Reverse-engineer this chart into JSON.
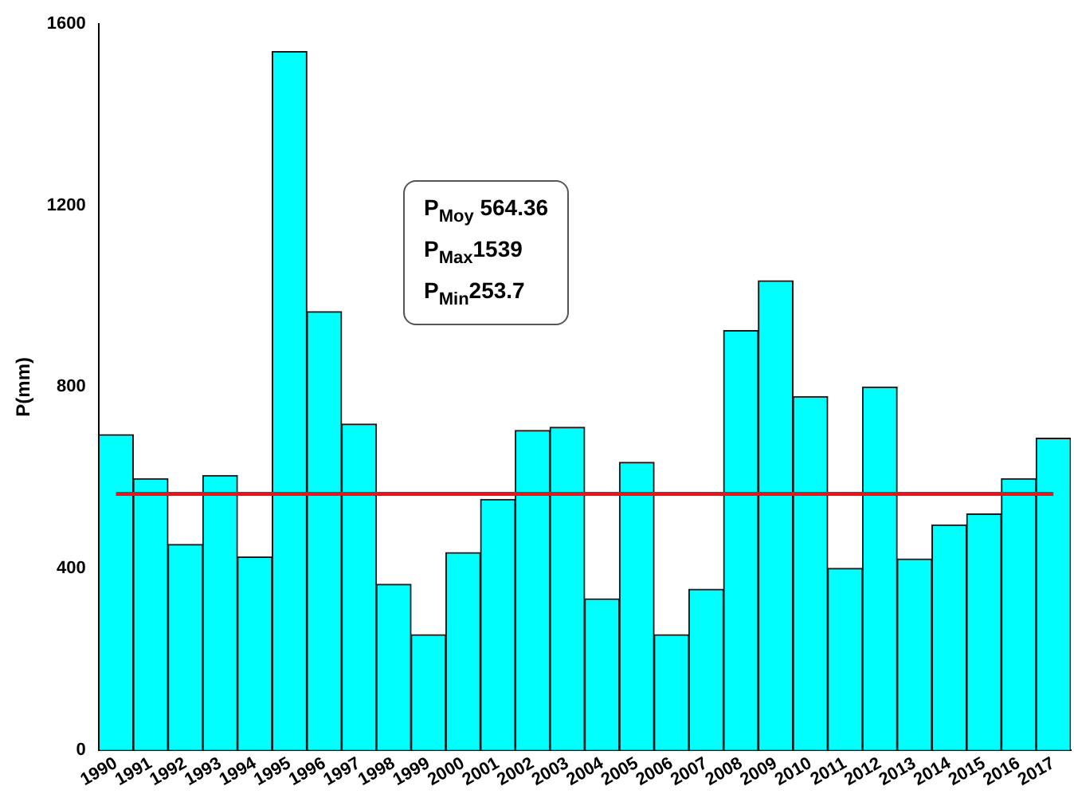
{
  "chart_data": {
    "type": "bar",
    "ylabel": "P(mm)",
    "categories": [
      "1990",
      "1991",
      "1992",
      "1993",
      "1994",
      "1995",
      "1996",
      "1997",
      "1998",
      "1999",
      "2000",
      "2001",
      "2002",
      "2003",
      "2004",
      "2005",
      "2006",
      "2007",
      "2008",
      "2009",
      "2010",
      "2011",
      "2012",
      "2013",
      "2014",
      "2015",
      "2016",
      "2017"
    ],
    "values": [
      695,
      598,
      453,
      605,
      425,
      1539,
      966,
      718,
      365,
      254,
      435,
      552,
      704,
      711,
      333,
      634,
      254,
      354,
      924,
      1034,
      779,
      400,
      800,
      421,
      496,
      520,
      598,
      687
    ],
    "color": "#00ffff",
    "ylim": [
      0,
      1600
    ],
    "yticks": [
      0,
      400,
      800,
      1200,
      1600
    ],
    "grid": false,
    "legend": false,
    "ref_lines": [
      {
        "axis": "y",
        "value": 564.36,
        "color": "#e8141b",
        "line_style": "solid"
      }
    ],
    "annotations": [
      "P$_{Moy}$ 564.36",
      "P$_{Max}$1539",
      "P$_{Min}$253.7"
    ]
  }
}
